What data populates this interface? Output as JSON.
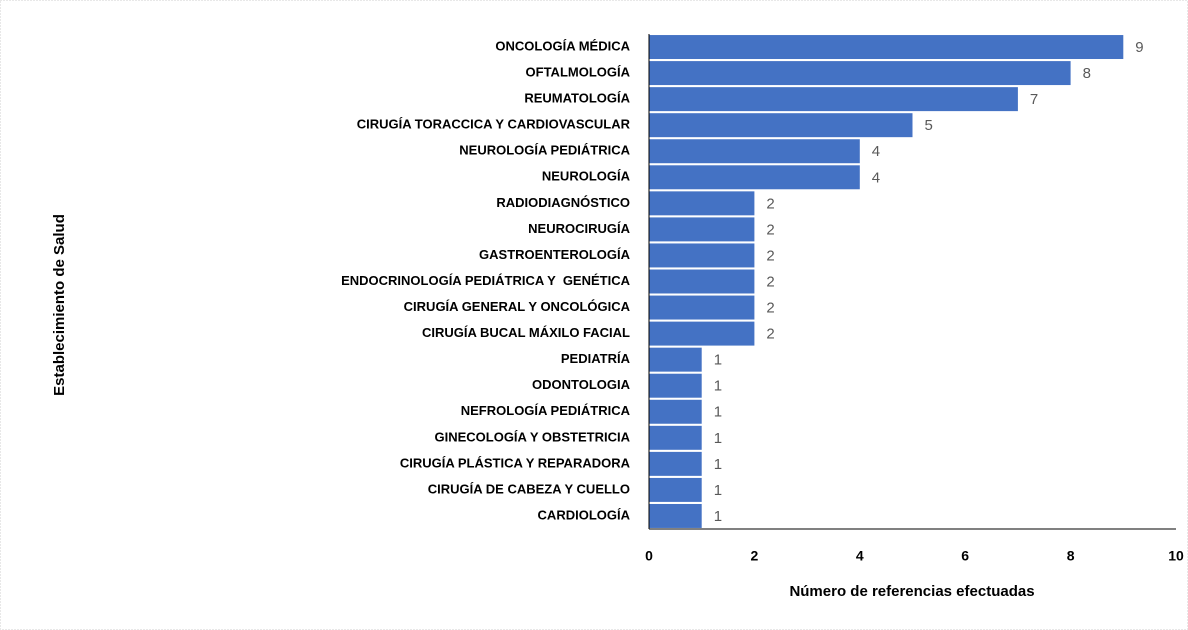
{
  "chart_data": {
    "type": "bar",
    "orientation": "horizontal",
    "x_label": "Número de referencias efectuadas",
    "y_label": "Establecimiento de Salud",
    "categories": [
      "ONCOLOGÍA MÉDICA",
      "OFTALMOLOGÍA",
      "REUMATOLOGÍA",
      "CIRUGÍA TORACCICA Y CARDIOVASCULAR",
      "NEUROLOGÍA PEDIÁTRICA",
      "NEUROLOGÍA",
      "RADIODIAGNÓSTICO",
      "NEUROCIRUGÍA",
      "GASTROENTEROLOGÍA",
      "ENDOCRINOLOGÍA PEDIÁTRICA Y  GENÉTICA",
      "CIRUGÍA GENERAL Y ONCOLÓGICA",
      "CIRUGÍA BUCAL MÁXILO FACIAL",
      "PEDIATRÍA",
      "ODONTOLOGIA",
      "NEFROLOGÍA PEDIÁTRICA",
      "GINECOLOGÍA Y OBSTETRICIA",
      "CIRUGÍA PLÁSTICA Y REPARADORA",
      "CIRUGÍA DE CABEZA Y CUELLO",
      "CARDIOLOGÍA"
    ],
    "values": [
      9,
      8,
      7,
      5,
      4,
      4,
      2,
      2,
      2,
      2,
      2,
      2,
      1,
      1,
      1,
      1,
      1,
      1,
      1
    ],
    "color": "#4472c4",
    "xlim": [
      0,
      10
    ],
    "xticks": [
      0,
      2,
      4,
      6,
      8,
      10
    ],
    "grid": false
  }
}
